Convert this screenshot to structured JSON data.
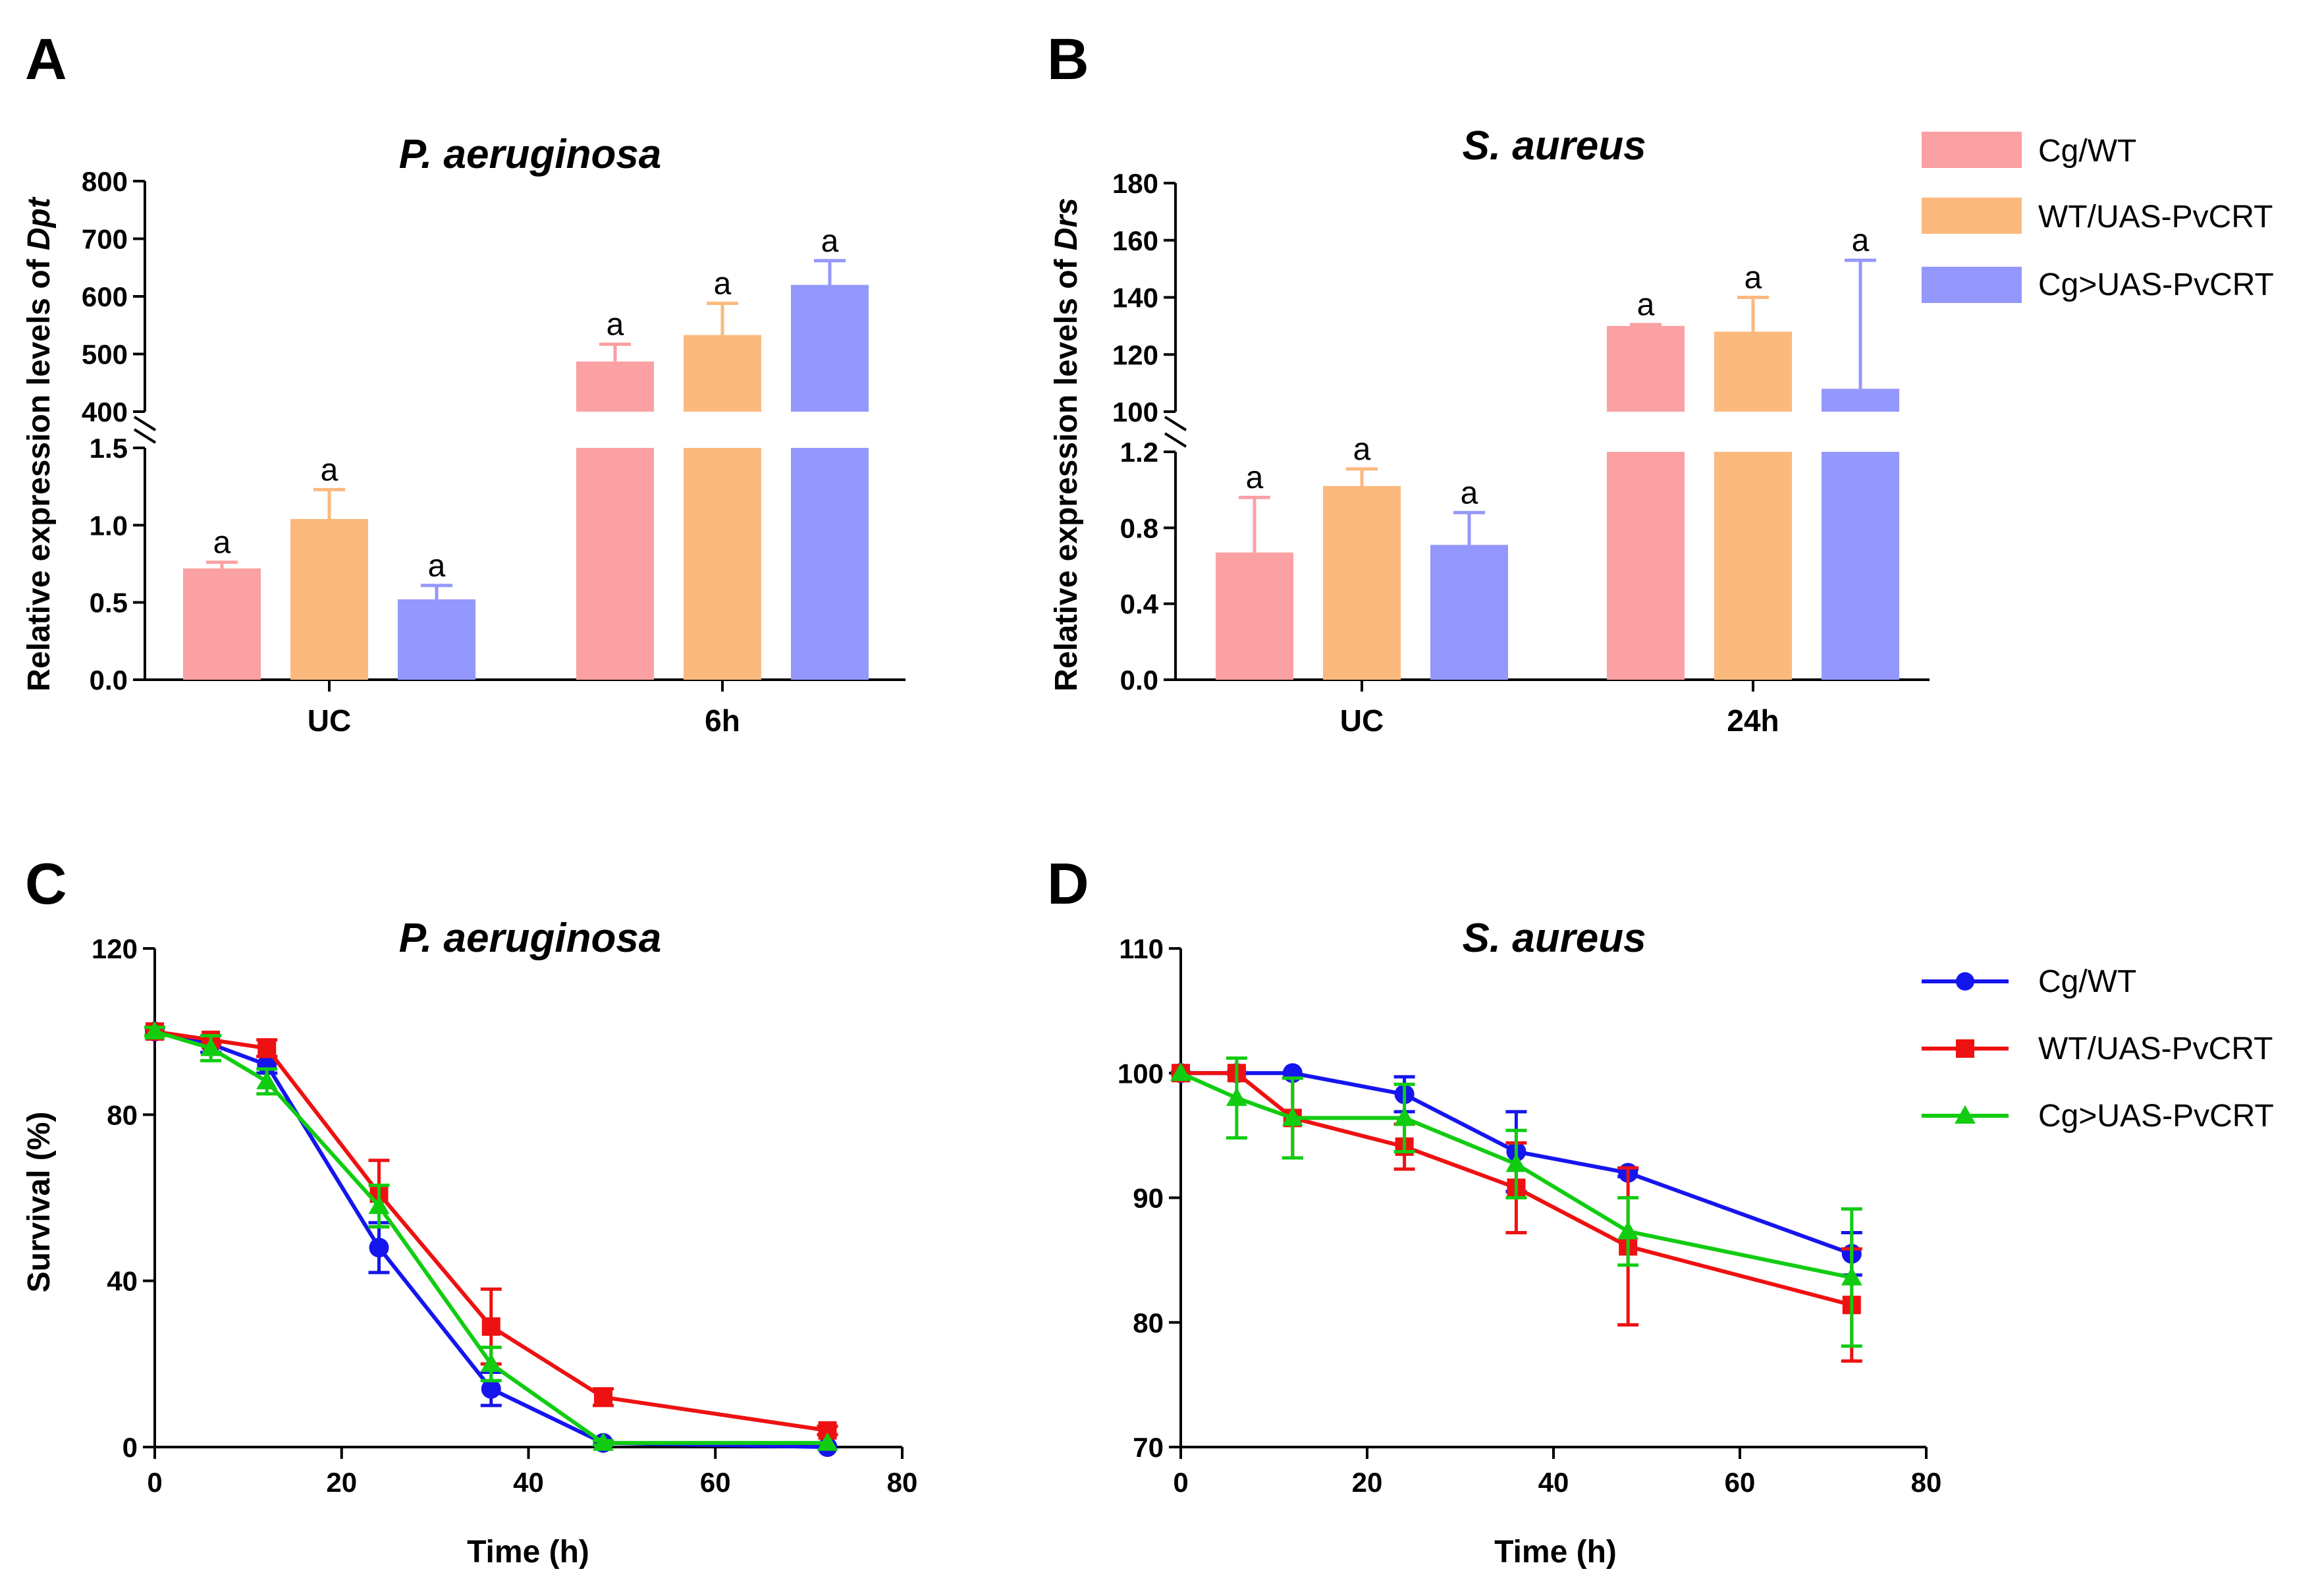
{
  "chart_data": [
    {
      "panel": "A",
      "type": "bar",
      "title": "P. aeruginosa",
      "ylabel_prefix": "Relative expression levels of ",
      "ylabel_gene": "Dpt",
      "xlabel": "",
      "categories": [
        "UC",
        "6h"
      ],
      "axis_break": {
        "lower_range": [
          0,
          1.5
        ],
        "upper_range": [
          400,
          800
        ]
      },
      "yticks_lower": [
        "0.0",
        "0.5",
        "1.0",
        "1.5"
      ],
      "yticks_upper": [
        "400",
        "500",
        "600",
        "700",
        "800"
      ],
      "series": [
        {
          "name": "Cg/WT",
          "color": "#FBA0A3",
          "values": [
            0.72,
            487
          ],
          "errors": [
            0.04,
            30
          ],
          "labels": [
            "a",
            "a"
          ]
        },
        {
          "name": "WT/UAS-PvCRT",
          "color": "#FBB97E",
          "values": [
            1.04,
            533
          ],
          "errors": [
            0.19,
            55
          ],
          "labels": [
            "a",
            "a"
          ]
        },
        {
          "name": "Cg>UAS-PvCRT",
          "color": "#9497FB",
          "values": [
            0.52,
            620
          ],
          "errors": [
            0.09,
            42
          ],
          "labels": [
            "a",
            "a"
          ]
        }
      ]
    },
    {
      "panel": "B",
      "type": "bar",
      "title": "S. aureus",
      "ylabel_prefix": "Relative expression levels of ",
      "ylabel_gene": "Drs",
      "xlabel": "",
      "categories": [
        "UC",
        "24h"
      ],
      "axis_break": {
        "lower_range": [
          0,
          1.2
        ],
        "upper_range": [
          100,
          180
        ]
      },
      "yticks_lower": [
        "0.0",
        "0.4",
        "0.8",
        "1.2"
      ],
      "yticks_upper": [
        "100",
        "120",
        "140",
        "160",
        "180"
      ],
      "series": [
        {
          "name": "Cg/WT",
          "color": "#FBA0A3",
          "values": [
            0.67,
            130
          ],
          "errors": [
            0.29,
            0.5
          ],
          "labels": [
            "a",
            "a"
          ]
        },
        {
          "name": "WT/UAS-PvCRT",
          "color": "#FBB97E",
          "values": [
            1.02,
            128
          ],
          "errors": [
            0.09,
            12
          ],
          "labels": [
            "a",
            "a"
          ]
        },
        {
          "name": "Cg>UAS-PvCRT",
          "color": "#9497FB",
          "values": [
            0.71,
            108
          ],
          "errors": [
            0.17,
            45
          ],
          "labels": [
            "a",
            "a"
          ]
        }
      ]
    },
    {
      "panel": "C",
      "type": "line",
      "title": "P. aeruginosa",
      "xlabel": "Time (h)",
      "ylabel": "Survival (%)",
      "xlim": [
        0,
        80
      ],
      "ylim": [
        0,
        120
      ],
      "xticks": [
        "0",
        "20",
        "40",
        "60",
        "80"
      ],
      "yticks": [
        "0",
        "40",
        "80",
        "120"
      ],
      "x": [
        0,
        6,
        12,
        24,
        36,
        48,
        72
      ],
      "series": [
        {
          "name": "Cg/WT",
          "color": "#1515EE",
          "marker": "circle",
          "values": [
            100,
            97,
            92,
            48,
            14,
            1,
            0
          ],
          "errors": [
            1,
            2,
            2,
            6,
            4,
            0.5,
            0
          ]
        },
        {
          "name": "WT/UAS-PvCRT",
          "color": "#EE1111",
          "marker": "square",
          "values": [
            100,
            98,
            96,
            61,
            29,
            12,
            4
          ],
          "errors": [
            1,
            1,
            2,
            8,
            9,
            2,
            1
          ]
        },
        {
          "name": "Cg>UAS-PvCRT",
          "color": "#11CC11",
          "marker": "triangle",
          "values": [
            100,
            96,
            88,
            58,
            20,
            1,
            1
          ],
          "errors": [
            1,
            3,
            3,
            5,
            4,
            0.5,
            0
          ]
        }
      ]
    },
    {
      "panel": "D",
      "type": "line",
      "title": "S. aureus",
      "xlabel": "Time (h)",
      "ylabel": "",
      "xlim": [
        0,
        80
      ],
      "ylim": [
        70,
        110
      ],
      "xticks": [
        "0",
        "20",
        "40",
        "60",
        "80"
      ],
      "yticks": [
        "70",
        "80",
        "90",
        "100",
        "110"
      ],
      "x": [
        0,
        6,
        12,
        24,
        36,
        48,
        72
      ],
      "series": [
        {
          "name": "Cg/WT",
          "color": "#1515EE",
          "marker": "circle",
          "values": [
            100,
            100,
            100,
            98.3,
            93.7,
            92,
            85.5
          ],
          "errors": [
            0,
            0,
            0,
            1.4,
            3.2,
            0.3,
            1.7
          ]
        },
        {
          "name": "WT/UAS-PvCRT",
          "color": "#EE1111",
          "marker": "square",
          "values": [
            100,
            100,
            96.4,
            94.1,
            90.8,
            86.1,
            81.4
          ],
          "errors": [
            0,
            0,
            3.2,
            1.8,
            3.6,
            6.3,
            4.5
          ]
        },
        {
          "name": "Cg>UAS-PvCRT",
          "color": "#11CC11",
          "marker": "triangle",
          "values": [
            100,
            98,
            96.4,
            96.4,
            92.7,
            87.3,
            83.6
          ],
          "errors": [
            0,
            3.2,
            3.2,
            2.7,
            2.7,
            2.7,
            5.5
          ]
        }
      ]
    }
  ],
  "bar_legend": [
    {
      "label": "Cg/WT",
      "color": "#FBA0A3"
    },
    {
      "label": "WT/UAS-PvCRT",
      "color": "#FBB97E"
    },
    {
      "label": "Cg>UAS-PvCRT",
      "color": "#9497FB"
    }
  ],
  "line_legend": [
    {
      "label": "Cg/WT",
      "color": "#1515EE",
      "marker": "circle"
    },
    {
      "label": "WT/UAS-PvCRT",
      "color": "#EE1111",
      "marker": "square"
    },
    {
      "label": "Cg>UAS-PvCRT",
      "color": "#11CC11",
      "marker": "triangle"
    }
  ]
}
